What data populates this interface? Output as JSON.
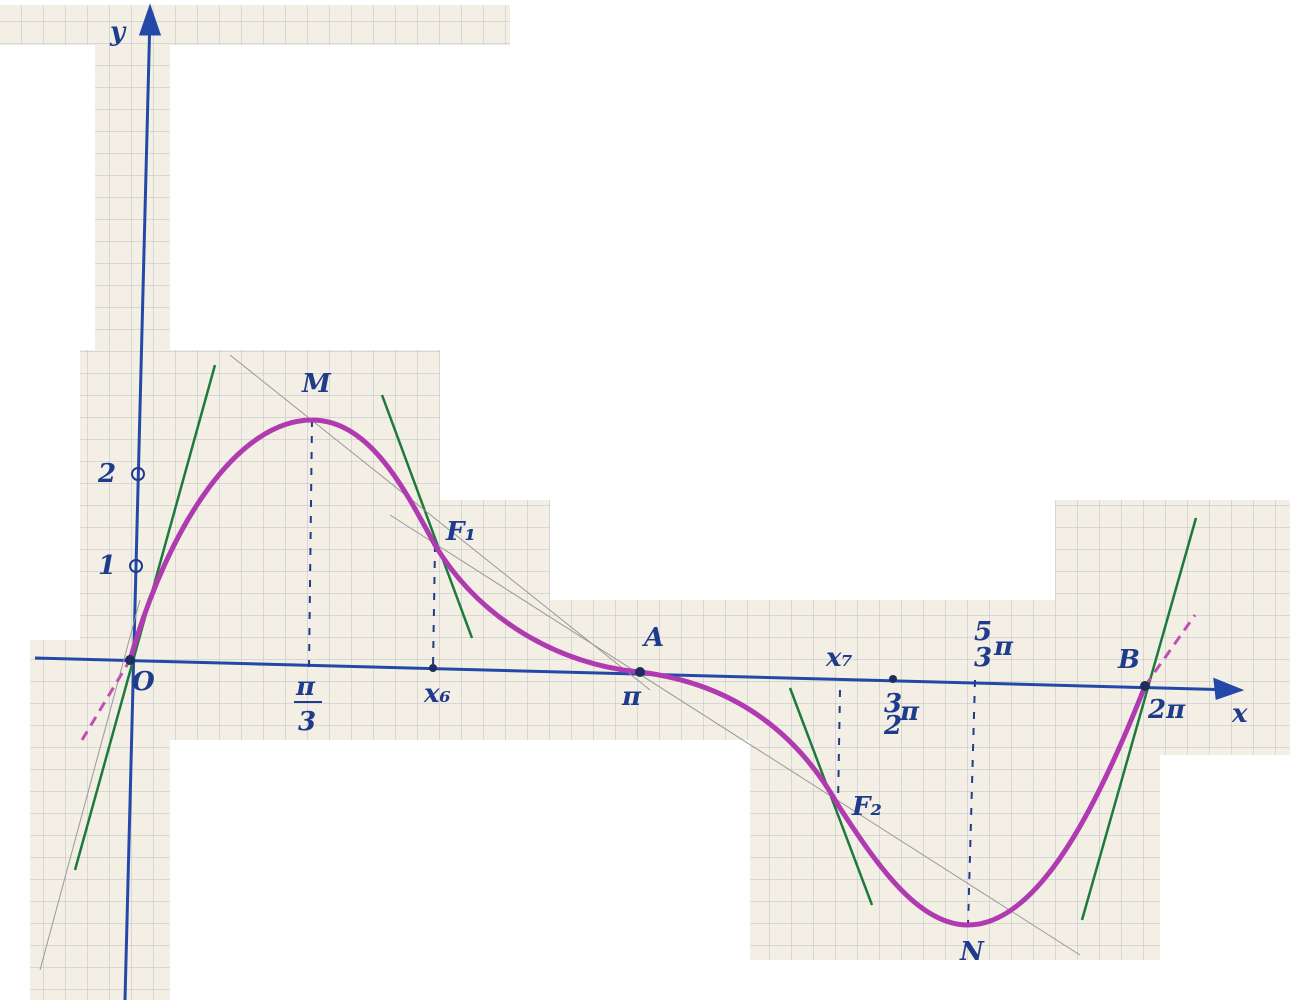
{
  "axes": {
    "x": "x",
    "y": "y"
  },
  "points": {
    "origin": "O",
    "max": "M",
    "inflection1": "F₁",
    "zero": "A",
    "inflection2": "F₂",
    "min": "N",
    "end": "B"
  },
  "x_ticks": {
    "pi_third": {
      "numerator": "π",
      "denominator": "3"
    },
    "x6": "x₆",
    "pi": "π",
    "x7": "x₇",
    "three_half_pi": {
      "numerator": "3",
      "denominator": "2",
      "symbol": "π"
    },
    "five_third_pi": {
      "numerator": "5",
      "denominator": "3",
      "symbol": "π"
    },
    "two_pi": "2π"
  },
  "y_ticks": {
    "two": "2",
    "one": "1"
  }
}
